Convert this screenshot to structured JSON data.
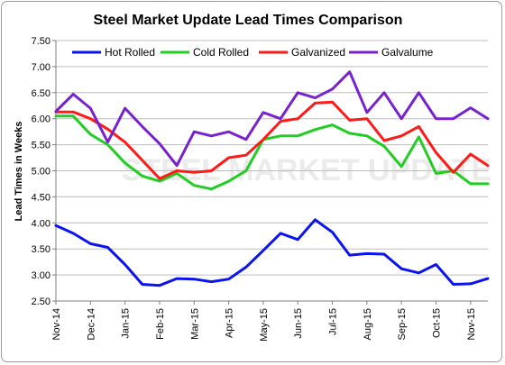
{
  "chart_data": {
    "type": "line",
    "title": "Steel Market Update Lead Times Comparison",
    "ylabel": "Lead Times in Weeks",
    "xlabel": "",
    "watermark": "STEEL MARKET UPDATE",
    "ylim": [
      2.5,
      7.5
    ],
    "yticks": [
      "2.50",
      "3.00",
      "3.50",
      "4.00",
      "4.50",
      "5.00",
      "5.50",
      "6.00",
      "6.50",
      "7.00",
      "7.50"
    ],
    "x_tick_labels": [
      "Nov-14",
      "Dec-14",
      "Jan-15",
      "Feb-15",
      "Mar-15",
      "Apr-15",
      "May-15",
      "Jun-15",
      "Jul-15",
      "Aug-15",
      "Sep-15",
      "Oct-15",
      "Nov-15"
    ],
    "points_per_month": 2,
    "grid": true,
    "legend_position": "top",
    "series": [
      {
        "name": "Hot Rolled",
        "color": "#0a14f0",
        "values": [
          3.95,
          3.8,
          3.6,
          3.53,
          3.2,
          2.82,
          2.8,
          2.93,
          2.92,
          2.87,
          2.92,
          3.15,
          3.47,
          3.8,
          3.68,
          4.06,
          3.82,
          3.38,
          3.41,
          3.4,
          3.12,
          3.04,
          3.2,
          2.82,
          2.83,
          2.93
        ]
      },
      {
        "name": "Cold Rolled",
        "color": "#22cc22",
        "values": [
          6.05,
          6.05,
          5.7,
          5.5,
          5.15,
          4.9,
          4.8,
          4.95,
          4.72,
          4.65,
          4.8,
          5.0,
          5.6,
          5.67,
          5.67,
          5.79,
          5.88,
          5.72,
          5.67,
          5.47,
          5.08,
          5.65,
          4.95,
          5.0,
          4.75,
          4.75
        ]
      },
      {
        "name": "Galvanized",
        "color": "#ff1a1a",
        "values": [
          6.13,
          6.13,
          6.0,
          5.8,
          5.55,
          5.2,
          4.85,
          5.0,
          4.97,
          5.0,
          5.25,
          5.3,
          5.6,
          5.95,
          6.0,
          6.3,
          6.32,
          5.97,
          6.0,
          5.58,
          5.67,
          5.85,
          5.35,
          4.97,
          5.32,
          5.1
        ]
      },
      {
        "name": "Galvalume",
        "color": "#7722cc",
        "values": [
          6.14,
          6.47,
          6.2,
          5.55,
          6.2,
          5.85,
          5.52,
          5.1,
          5.75,
          5.67,
          5.75,
          5.6,
          6.12,
          6.0,
          6.5,
          6.4,
          6.57,
          6.9,
          6.12,
          6.5,
          6.0,
          6.5,
          6.0,
          6.0,
          6.21,
          6.0
        ]
      }
    ]
  }
}
